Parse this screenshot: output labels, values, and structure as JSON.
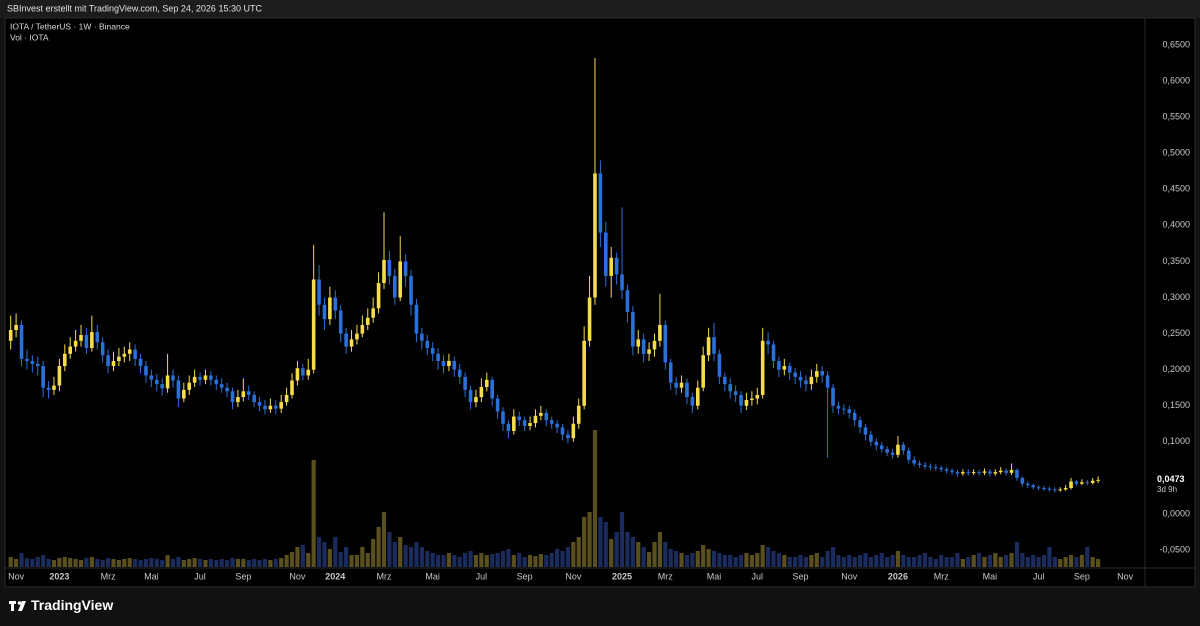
{
  "header": {
    "attribution": "SBInvest erstellt mit TradingView.com, Sep 24, 2026 15:30 UTC"
  },
  "footer": {
    "brand": "TradingView"
  },
  "chart_data": {
    "type": "candlestick",
    "title": "IOTA / TetherUS · 1W · Binance",
    "volume_label": "Vol · IOTA",
    "up_color": "#f5dc4a",
    "down_color": "#2b6fd8",
    "volume_up_color": "#5a4f1f",
    "volume_down_color": "#1b2c5c",
    "grid": false,
    "ylim": [
      -0.0735,
      0.6874
    ],
    "yticks": [
      {
        "value": -0.05,
        "label": "-0,0500"
      },
      {
        "value": 0,
        "label": "0,0000"
      },
      {
        "value": 0.05,
        "label": "0,0500"
      },
      {
        "value": 0.1,
        "label": "0,1000"
      },
      {
        "value": 0.15,
        "label": "0,1500"
      },
      {
        "value": 0.2,
        "label": "0,2000"
      },
      {
        "value": 0.25,
        "label": "0,2500"
      },
      {
        "value": 0.3,
        "label": "0,3000"
      },
      {
        "value": 0.35,
        "label": "0,3500"
      },
      {
        "value": 0.4,
        "label": "0,4000"
      },
      {
        "value": 0.45,
        "label": "0,4500"
      },
      {
        "value": 0.5,
        "label": "0,5000"
      },
      {
        "value": 0.55,
        "label": "0,5500"
      },
      {
        "value": 0.6,
        "label": "0,6000"
      },
      {
        "value": 0.65,
        "label": "0,6500"
      }
    ],
    "last_price": {
      "value": 0.0473,
      "label": "0,0473",
      "countdown": "3d 9h"
    },
    "categories": [
      null,
      "Nov",
      null,
      null,
      null,
      null,
      null,
      null,
      null,
      "2023",
      null,
      null,
      null,
      null,
      null,
      null,
      null,
      null,
      "Mrz",
      null,
      null,
      null,
      null,
      null,
      null,
      null,
      "Mai",
      null,
      null,
      null,
      null,
      null,
      null,
      null,
      null,
      "Jul",
      null,
      null,
      null,
      null,
      null,
      null,
      null,
      "Sep",
      null,
      null,
      null,
      null,
      null,
      null,
      null,
      null,
      null,
      "Nov",
      null,
      null,
      null,
      null,
      null,
      null,
      "2024",
      null,
      null,
      null,
      null,
      null,
      null,
      null,
      null,
      "Mrz",
      null,
      null,
      null,
      null,
      null,
      null,
      null,
      null,
      "Mai",
      null,
      null,
      null,
      null,
      null,
      null,
      null,
      null,
      "Jul",
      null,
      null,
      null,
      null,
      null,
      null,
      null,
      "Sep",
      null,
      null,
      null,
      null,
      null,
      null,
      null,
      null,
      "Nov",
      null,
      null,
      null,
      null,
      null,
      null,
      null,
      null,
      "2025",
      null,
      null,
      null,
      null,
      null,
      null,
      null,
      "Mrz",
      null,
      null,
      null,
      null,
      null,
      null,
      null,
      null,
      "Mai",
      null,
      null,
      null,
      null,
      null,
      null,
      null,
      "Jul",
      null,
      null,
      null,
      null,
      null,
      null,
      null,
      "Sep",
      null,
      null,
      null,
      null,
      null,
      null,
      null,
      null,
      "Nov",
      null,
      null,
      null,
      null,
      null,
      null,
      null,
      null,
      "2026",
      null,
      null,
      null,
      null,
      null,
      null,
      null,
      "Mrz",
      null,
      null,
      null,
      null,
      null,
      null,
      null,
      null,
      "Mai",
      null,
      null,
      null,
      null,
      null,
      null,
      null,
      null,
      "Jul",
      null,
      null,
      null,
      null,
      null,
      null,
      null,
      "Sep",
      null,
      null,
      null,
      null,
      null,
      null,
      null,
      "Nov",
      null,
      null,
      null
    ],
    "open": [
      0.24,
      0.255,
      0.262,
      0.215,
      0.212,
      0.208,
      0.205,
      0.175,
      0.172,
      0.178,
      0.205,
      0.222,
      0.232,
      0.24,
      0.248,
      0.23,
      0.252,
      0.238,
      0.22,
      0.205,
      0.212,
      0.218,
      0.222,
      0.228,
      0.215,
      0.205,
      0.192,
      0.186,
      0.18,
      0.174,
      0.192,
      0.185,
      0.16,
      0.172,
      0.182,
      0.19,
      0.186,
      0.192,
      0.186,
      0.18,
      0.175,
      0.17,
      0.155,
      0.162,
      0.17,
      0.165,
      0.155,
      0.15,
      0.145,
      0.15,
      0.146,
      0.155,
      0.165,
      0.185,
      0.202,
      0.192,
      0.2,
      0.325,
      0.29,
      0.27,
      0.3,
      0.282,
      0.25,
      0.232,
      0.242,
      0.25,
      0.262,
      0.272,
      0.285,
      0.32,
      0.352,
      0.33,
      0.3,
      0.35,
      0.33,
      0.29,
      0.25,
      0.24,
      0.23,
      0.222,
      0.212,
      0.205,
      0.212,
      0.2,
      0.19,
      0.172,
      0.155,
      0.162,
      0.176,
      0.186,
      0.16,
      0.142,
      0.125,
      0.115,
      0.135,
      0.13,
      0.122,
      0.126,
      0.136,
      0.14,
      0.13,
      0.125,
      0.12,
      0.11,
      0.105,
      0.125,
      0.15,
      0.24,
      0.3,
      0.472,
      0.39,
      0.33,
      0.355,
      0.332,
      0.31,
      0.28,
      0.232,
      0.242,
      0.222,
      0.228,
      0.24,
      0.262,
      0.21,
      0.182,
      0.175,
      0.182,
      0.162,
      0.15,
      0.175,
      0.22,
      0.245,
      0.222,
      0.19,
      0.18,
      0.17,
      0.165,
      0.15,
      0.158,
      0.16,
      0.165,
      0.24,
      0.235,
      0.212,
      0.2,
      0.205,
      0.196,
      0.19,
      0.185,
      0.18,
      0.19,
      0.198,
      0.192,
      0.175,
      0.15,
      0.146,
      0.145,
      0.14,
      0.13,
      0.12,
      0.11,
      0.1,
      0.095,
      0.09,
      0.085,
      0.082,
      0.096,
      0.088,
      0.075,
      0.07,
      0.068,
      0.066,
      0.065,
      0.064,
      0.062,
      0.06,
      0.058,
      0.056,
      0.058,
      0.057,
      0.058,
      0.057,
      0.059,
      0.056,
      0.058,
      0.06,
      0.057,
      0.061,
      0.05,
      0.042,
      0.04,
      0.037,
      0.036,
      0.035,
      0.034,
      0.033,
      0.034,
      0.036,
      0.045,
      0.042,
      0.044,
      0.043,
      0.046,
      null,
      null,
      null,
      null,
      null,
      null,
      null,
      null
    ],
    "high": [
      0.275,
      0.278,
      0.268,
      0.228,
      0.22,
      0.218,
      0.212,
      0.184,
      0.19,
      0.215,
      0.235,
      0.245,
      0.255,
      0.262,
      0.258,
      0.275,
      0.262,
      0.245,
      0.228,
      0.225,
      0.23,
      0.232,
      0.238,
      0.235,
      0.222,
      0.212,
      0.2,
      0.194,
      0.188,
      0.222,
      0.2,
      0.192,
      0.182,
      0.192,
      0.2,
      0.196,
      0.2,
      0.198,
      0.192,
      0.188,
      0.182,
      0.175,
      0.172,
      0.188,
      0.178,
      0.17,
      0.162,
      0.158,
      0.16,
      0.158,
      0.165,
      0.175,
      0.195,
      0.212,
      0.208,
      0.215,
      0.373,
      0.345,
      0.3,
      0.315,
      0.31,
      0.29,
      0.258,
      0.255,
      0.262,
      0.275,
      0.285,
      0.3,
      0.335,
      0.418,
      0.365,
      0.34,
      0.385,
      0.36,
      0.338,
      0.298,
      0.258,
      0.248,
      0.238,
      0.23,
      0.22,
      0.222,
      0.218,
      0.208,
      0.196,
      0.178,
      0.172,
      0.188,
      0.196,
      0.19,
      0.165,
      0.148,
      0.13,
      0.145,
      0.142,
      0.135,
      0.135,
      0.145,
      0.15,
      0.145,
      0.135,
      0.13,
      0.125,
      0.116,
      0.135,
      0.16,
      0.26,
      0.33,
      0.632,
      0.49,
      0.405,
      0.37,
      0.362,
      0.425,
      0.318,
      0.288,
      0.255,
      0.25,
      0.238,
      0.25,
      0.305,
      0.268,
      0.215,
      0.19,
      0.192,
      0.188,
      0.168,
      0.185,
      0.232,
      0.258,
      0.265,
      0.228,
      0.196,
      0.188,
      0.178,
      0.17,
      0.168,
      0.17,
      0.175,
      0.258,
      0.252,
      0.24,
      0.218,
      0.215,
      0.21,
      0.202,
      0.198,
      0.192,
      0.2,
      0.208,
      0.205,
      0.198,
      0.18,
      0.156,
      0.152,
      0.15,
      0.145,
      0.135,
      0.125,
      0.115,
      0.105,
      0.1,
      0.094,
      0.09,
      0.108,
      0.1,
      0.092,
      0.08,
      0.074,
      0.072,
      0.07,
      0.069,
      0.067,
      0.065,
      0.063,
      0.061,
      0.062,
      0.062,
      0.062,
      0.061,
      0.063,
      0.062,
      0.062,
      0.065,
      0.063,
      0.07,
      0.063,
      0.052,
      0.045,
      0.042,
      0.04,
      0.039,
      0.038,
      0.037,
      0.037,
      0.04,
      0.05,
      0.047,
      0.048,
      0.047,
      0.05,
      0.052,
      null,
      null,
      null,
      null,
      null,
      null,
      null,
      null
    ],
    "low": [
      0.228,
      0.245,
      0.205,
      0.2,
      0.196,
      0.192,
      0.162,
      0.16,
      0.165,
      0.17,
      0.198,
      0.215,
      0.225,
      0.232,
      0.222,
      0.225,
      0.228,
      0.21,
      0.195,
      0.198,
      0.205,
      0.21,
      0.212,
      0.205,
      0.195,
      0.182,
      0.176,
      0.17,
      0.164,
      0.168,
      0.175,
      0.148,
      0.155,
      0.165,
      0.176,
      0.178,
      0.18,
      0.178,
      0.172,
      0.168,
      0.162,
      0.145,
      0.148,
      0.156,
      0.158,
      0.148,
      0.142,
      0.138,
      0.14,
      0.138,
      0.14,
      0.15,
      0.16,
      0.178,
      0.185,
      0.186,
      0.195,
      0.275,
      0.255,
      0.262,
      0.27,
      0.238,
      0.222,
      0.225,
      0.235,
      0.245,
      0.255,
      0.265,
      0.278,
      0.312,
      0.318,
      0.29,
      0.295,
      0.315,
      0.275,
      0.238,
      0.228,
      0.22,
      0.212,
      0.2,
      0.195,
      0.198,
      0.19,
      0.18,
      0.162,
      0.145,
      0.148,
      0.155,
      0.17,
      0.15,
      0.132,
      0.115,
      0.105,
      0.11,
      0.122,
      0.115,
      0.116,
      0.12,
      0.13,
      0.122,
      0.118,
      0.112,
      0.102,
      0.098,
      0.1,
      0.118,
      0.145,
      0.232,
      0.29,
      0.37,
      0.315,
      0.3,
      0.318,
      0.298,
      0.265,
      0.22,
      0.222,
      0.21,
      0.212,
      0.218,
      0.232,
      0.2,
      0.172,
      0.165,
      0.168,
      0.152,
      0.14,
      0.145,
      0.17,
      0.212,
      0.212,
      0.18,
      0.17,
      0.16,
      0.155,
      0.14,
      0.144,
      0.15,
      0.152,
      0.16,
      0.222,
      0.202,
      0.19,
      0.192,
      0.186,
      0.18,
      0.175,
      0.17,
      0.172,
      0.182,
      0.182,
      0.078,
      0.14,
      0.138,
      0.138,
      0.132,
      0.122,
      0.112,
      0.102,
      0.094,
      0.088,
      0.085,
      0.08,
      0.077,
      0.078,
      0.082,
      0.07,
      0.066,
      0.064,
      0.062,
      0.061,
      0.06,
      0.058,
      0.056,
      0.054,
      0.052,
      0.053,
      0.053,
      0.054,
      0.053,
      0.054,
      0.052,
      0.053,
      0.055,
      0.053,
      0.054,
      0.046,
      0.038,
      0.036,
      0.034,
      0.033,
      0.032,
      0.031,
      0.03,
      0.031,
      0.032,
      0.034,
      0.039,
      0.04,
      0.04,
      0.041,
      0.043,
      null,
      null,
      null,
      null,
      null,
      null,
      null,
      null
    ],
    "close": [
      0.255,
      0.262,
      0.215,
      0.212,
      0.208,
      0.205,
      0.175,
      0.172,
      0.178,
      0.205,
      0.222,
      0.232,
      0.24,
      0.248,
      0.23,
      0.252,
      0.238,
      0.22,
      0.205,
      0.212,
      0.218,
      0.222,
      0.228,
      0.215,
      0.205,
      0.192,
      0.186,
      0.18,
      0.174,
      0.192,
      0.185,
      0.16,
      0.172,
      0.182,
      0.19,
      0.186,
      0.192,
      0.186,
      0.18,
      0.175,
      0.17,
      0.155,
      0.162,
      0.17,
      0.165,
      0.155,
      0.15,
      0.145,
      0.15,
      0.146,
      0.155,
      0.165,
      0.185,
      0.202,
      0.192,
      0.2,
      0.325,
      0.29,
      0.27,
      0.3,
      0.282,
      0.25,
      0.232,
      0.242,
      0.25,
      0.262,
      0.272,
      0.285,
      0.32,
      0.352,
      0.33,
      0.3,
      0.35,
      0.33,
      0.29,
      0.25,
      0.24,
      0.23,
      0.222,
      0.212,
      0.205,
      0.212,
      0.2,
      0.19,
      0.172,
      0.155,
      0.162,
      0.176,
      0.186,
      0.16,
      0.142,
      0.125,
      0.115,
      0.135,
      0.13,
      0.122,
      0.126,
      0.136,
      0.14,
      0.13,
      0.125,
      0.12,
      0.11,
      0.105,
      0.125,
      0.15,
      0.24,
      0.3,
      0.472,
      0.39,
      0.33,
      0.355,
      0.332,
      0.31,
      0.28,
      0.232,
      0.242,
      0.222,
      0.228,
      0.24,
      0.262,
      0.21,
      0.182,
      0.175,
      0.182,
      0.162,
      0.15,
      0.175,
      0.22,
      0.245,
      0.222,
      0.19,
      0.18,
      0.17,
      0.165,
      0.15,
      0.158,
      0.16,
      0.165,
      0.24,
      0.235,
      0.212,
      0.2,
      0.205,
      0.196,
      0.19,
      0.185,
      0.18,
      0.19,
      0.198,
      0.192,
      0.175,
      0.15,
      0.146,
      0.145,
      0.14,
      0.13,
      0.12,
      0.11,
      0.1,
      0.095,
      0.09,
      0.085,
      0.082,
      0.096,
      0.088,
      0.075,
      0.07,
      0.068,
      0.066,
      0.065,
      0.064,
      0.062,
      0.06,
      0.058,
      0.056,
      0.058,
      0.057,
      0.058,
      0.057,
      0.059,
      0.056,
      0.058,
      0.06,
      0.057,
      0.061,
      0.05,
      0.042,
      0.04,
      0.037,
      0.036,
      0.035,
      0.034,
      0.033,
      0.034,
      0.036,
      0.045,
      0.042,
      0.044,
      0.043,
      0.046,
      0.0473,
      null,
      null,
      null,
      null,
      null,
      null,
      null,
      null
    ],
    "volume": [
      10,
      8,
      14,
      9,
      8,
      10,
      12,
      8,
      7,
      9,
      10,
      9,
      8,
      7,
      9,
      10,
      8,
      7,
      9,
      8,
      7,
      8,
      9,
      8,
      7,
      8,
      9,
      8,
      7,
      12,
      8,
      10,
      7,
      8,
      9,
      8,
      7,
      8,
      7,
      8,
      7,
      9,
      8,
      8,
      7,
      8,
      7,
      8,
      7,
      8,
      9,
      12,
      15,
      20,
      22,
      14,
      107,
      30,
      25,
      18,
      30,
      15,
      20,
      12,
      12,
      20,
      14,
      28,
      40,
      55,
      35,
      25,
      30,
      22,
      20,
      25,
      20,
      16,
      14,
      12,
      12,
      14,
      12,
      10,
      14,
      16,
      12,
      14,
      12,
      13,
      14,
      16,
      18,
      12,
      14,
      10,
      12,
      11,
      13,
      12,
      14,
      18,
      16,
      20,
      25,
      30,
      50,
      55,
      137,
      50,
      45,
      28,
      35,
      55,
      35,
      30,
      25,
      20,
      15,
      25,
      35,
      25,
      18,
      16,
      14,
      12,
      14,
      16,
      22,
      18,
      16,
      14,
      12,
      12,
      10,
      12,
      14,
      12,
      14,
      22,
      20,
      16,
      14,
      12,
      10,
      10,
      12,
      10,
      12,
      14,
      10,
      16,
      20,
      12,
      10,
      12,
      10,
      12,
      14,
      10,
      12,
      14,
      10,
      12,
      16,
      12,
      10,
      10,
      12,
      14,
      10,
      8,
      12,
      10,
      10,
      14,
      8,
      10,
      12,
      14,
      10,
      12,
      14,
      10,
      12,
      14,
      25,
      14,
      10,
      12,
      10,
      12,
      20,
      10,
      8,
      10,
      12,
      10,
      12,
      20,
      10,
      8,
      null,
      null,
      null,
      null,
      null,
      null,
      null,
      null
    ]
  }
}
